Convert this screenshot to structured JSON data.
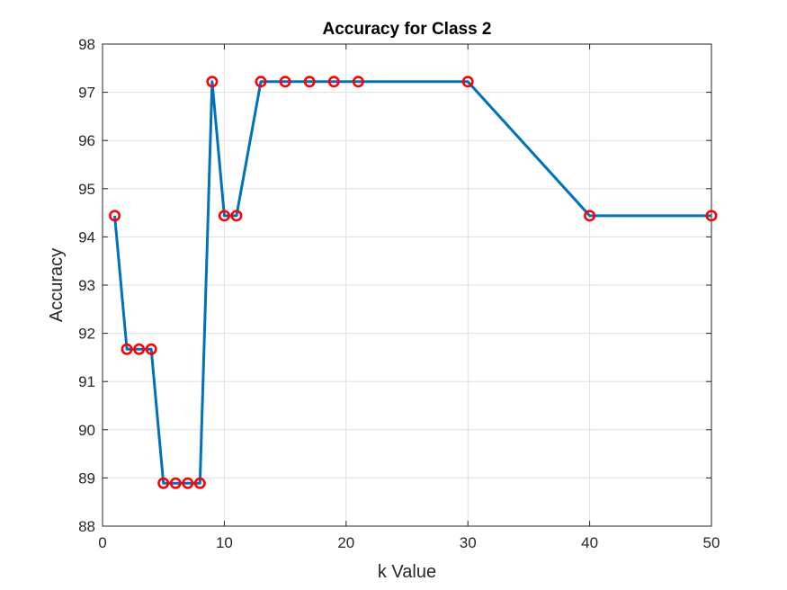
{
  "chart_data": {
    "type": "line",
    "title": "Accuracy for Class 2",
    "xlabel": "k Value",
    "ylabel": "Accuracy",
    "xlim": [
      0,
      50
    ],
    "ylim": [
      88,
      98
    ],
    "xticks": [
      0,
      10,
      20,
      30,
      40,
      50
    ],
    "yticks": [
      88,
      89,
      90,
      91,
      92,
      93,
      94,
      95,
      96,
      97,
      98
    ],
    "grid": true,
    "colors": {
      "line": "#0072BD",
      "marker": "#FF0000"
    },
    "series": [
      {
        "x": [
          1,
          2,
          3,
          4,
          5,
          6,
          7,
          8,
          9,
          10,
          11,
          13,
          15,
          17,
          19,
          21,
          30,
          40,
          50
        ],
        "y": [
          94.44,
          91.67,
          91.67,
          91.67,
          88.89,
          88.89,
          88.89,
          88.89,
          97.22,
          94.44,
          94.44,
          97.22,
          97.22,
          97.22,
          97.22,
          97.22,
          97.22,
          94.44,
          94.44
        ],
        "marker": "circle"
      }
    ]
  }
}
